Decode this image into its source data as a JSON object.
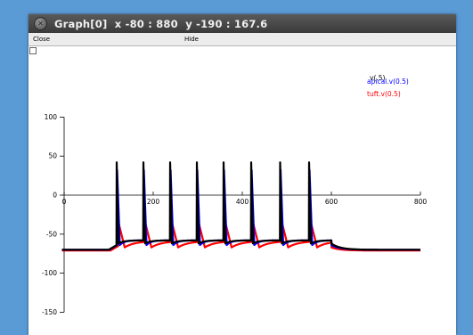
{
  "window": {
    "title": "Graph[0]  x -80 : 880  y -190 : 167.6"
  },
  "menu": {
    "close_label": "Close",
    "hide_label": "Hide"
  },
  "colors": {
    "desktop": "#5b9bd5",
    "soma": "#000000",
    "apical": "#0000ff",
    "tuft": "#ff0000"
  },
  "chart_data": {
    "type": "line",
    "xlim": [
      -80,
      880
    ],
    "ylim": [
      -190,
      167.6
    ],
    "x_ticks": [
      0,
      200,
      400,
      600,
      800
    ],
    "y_ticks": [
      100,
      50,
      0,
      -50,
      -100,
      -150
    ],
    "x_tick_labels": [
      "0",
      "200",
      "400",
      "600",
      "800"
    ],
    "y_tick_labels": [
      "100",
      "50",
      "0",
      "-50",
      "-100",
      "-150"
    ],
    "legend": [
      "v(.5)",
      "apical.v(0.5)",
      "tuft.v(0.5)"
    ],
    "spike_times": [
      118,
      178,
      238,
      298,
      358,
      420,
      485,
      550
    ],
    "series": [
      {
        "name": "v(.5)",
        "color": "#000000",
        "peak": 42,
        "trough": -62,
        "rest": -70,
        "spike_width": 4,
        "decay_tau": 12,
        "delay": 0,
        "end_time": 600
      },
      {
        "name": "apical.v(0.5)",
        "color": "#0000ff",
        "peak": 32,
        "trough": -64,
        "rest": -70,
        "spike_width": 6,
        "decay_tau": 10,
        "delay": 1,
        "end_time": 600
      },
      {
        "name": "tuft.v(0.5)",
        "color": "#ff0000",
        "peak": -35,
        "trough": -67,
        "rest": -71,
        "spike_width": 14,
        "decay_tau": 22,
        "delay": 4,
        "end_time": 600
      }
    ],
    "grid": false,
    "legend_position": "top-right"
  }
}
